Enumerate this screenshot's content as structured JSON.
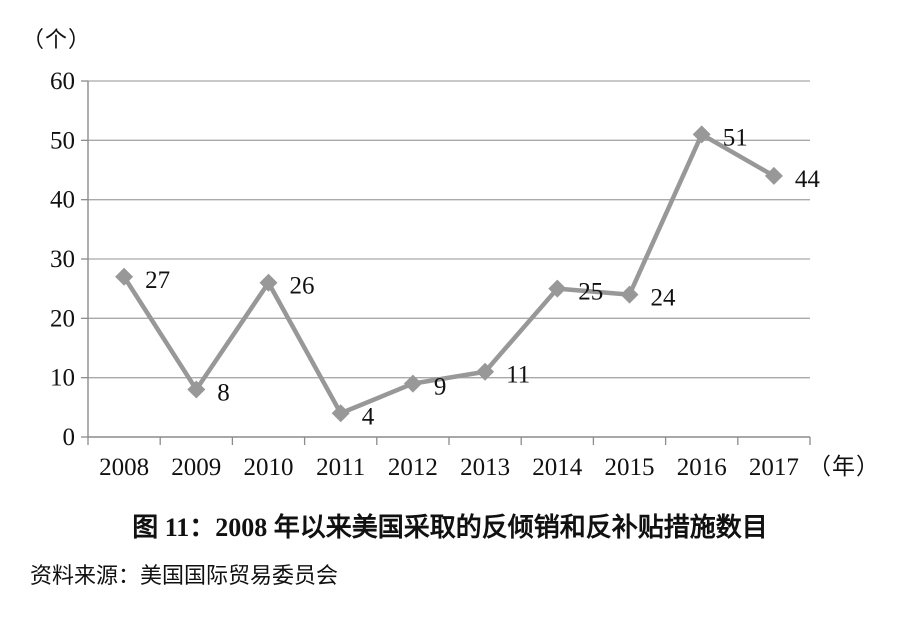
{
  "figure": {
    "y_unit_label": "（个）",
    "title": "图 11：2008 年以来美国采取的反倾销和反补贴措施数目",
    "source": "资料来源：美国国际贸易委员会"
  },
  "chart_data": {
    "type": "line",
    "title": "图 11：2008 年以来美国采取的反倾销和反补贴措施数目",
    "source": "资料来源：美国国际贸易委员会",
    "y_unit_label": "（个）",
    "x_unit_label": "（年）",
    "categories": [
      "2008",
      "2009",
      "2010",
      "2011",
      "2012",
      "2013",
      "2014",
      "2015",
      "2016",
      "2017"
    ],
    "values": [
      27,
      8,
      26,
      4,
      9,
      11,
      25,
      24,
      51,
      44
    ],
    "data_labels_visible": true,
    "ylim": [
      0,
      60
    ],
    "ytick_step": 10,
    "ytick_labels": [
      "0",
      "10",
      "20",
      "30",
      "40",
      "50",
      "60"
    ],
    "grid": true,
    "legend_position": "none",
    "marker": "diamond",
    "colors": {
      "line": "#989898",
      "marker": "#989898",
      "grid": "#a9a9a9",
      "axis": "#8c8c8c",
      "text": "#111111"
    }
  }
}
